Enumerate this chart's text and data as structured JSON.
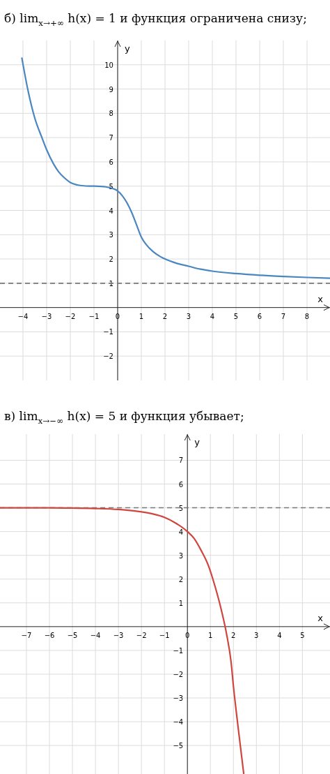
{
  "chart_data": [
    {
      "type": "line",
      "title": "б) lim$_{x→+∞}$ h(x) = 1 и функция ограничена снизу;",
      "xlabel": "x",
      "ylabel": "y",
      "xlim": [
        -4.97,
        8.97
      ],
      "ylim": [
        -3,
        11
      ],
      "xticks": [
        -4,
        -3,
        -2,
        -1,
        0,
        1,
        2,
        3,
        4,
        5,
        6,
        7,
        8
      ],
      "yticks": [
        -2,
        -1,
        1,
        2,
        3,
        4,
        5,
        6,
        7,
        8,
        9,
        10
      ],
      "grid": true,
      "ref_lines": [
        {
          "axis": "y",
          "value": 1,
          "color": "#777777",
          "line_style": "dashed"
        }
      ],
      "series": [
        {
          "color": "#4a86c0",
          "x": [
            -4.05,
            -3.8,
            -3.5,
            -3.2,
            -3,
            -2.7,
            -2.5,
            -2.2,
            -2,
            -1.7,
            -1.5,
            -1.2,
            -1,
            -0.7,
            -0.5,
            -0.3,
            -0.1,
            0,
            0.2,
            0.4,
            0.6,
            0.8,
            1,
            1.2,
            1.5,
            1.8,
            2,
            2.5,
            3,
            3.5,
            4,
            5,
            6,
            7,
            8,
            8.97
          ],
          "values": [
            10.3,
            9,
            7.8,
            7,
            6.5,
            5.9,
            5.6,
            5.3,
            5.15,
            5.05,
            5.02,
            5.0,
            5.0,
            4.99,
            4.97,
            4.93,
            4.86,
            4.8,
            4.6,
            4.3,
            3.9,
            3.4,
            2.9,
            2.6,
            2.3,
            2.1,
            2.0,
            1.82,
            1.7,
            1.58,
            1.5,
            1.4,
            1.33,
            1.28,
            1.24,
            1.21
          ]
        }
      ]
    },
    {
      "type": "line",
      "title": "в) lim$_{x→−∞}$ h(x) = 5 и функция убывает;",
      "xlabel": "x",
      "ylabel": "y",
      "xlim": [
        -8.15,
        6.2
      ],
      "ylim": [
        -6.2,
        8.1
      ],
      "xticks": [
        -7,
        -6,
        -5,
        -4,
        -3,
        -2,
        -1,
        0,
        1,
        2,
        3,
        4,
        5
      ],
      "yticks": [
        -5,
        -4,
        -3,
        -2,
        -1,
        1,
        2,
        3,
        4,
        5,
        6,
        7
      ],
      "grid": true,
      "ref_lines": [
        {
          "axis": "y",
          "value": 5,
          "color": "#777777",
          "line_style": "dashed"
        }
      ],
      "series": [
        {
          "color": "#d0463f",
          "x": [
            -8.15,
            -7,
            -6,
            -5,
            -4,
            -3,
            -2.5,
            -2,
            -1.5,
            -1,
            -0.5,
            0,
            0.3,
            0.6,
            0.9,
            1.2,
            1.5,
            1.7,
            1.9,
            2,
            2.2,
            2.45
          ],
          "values": [
            5.0,
            5.0,
            5.0,
            4.99,
            4.97,
            4.93,
            4.89,
            4.83,
            4.74,
            4.6,
            4.35,
            4.0,
            3.7,
            3.2,
            2.6,
            1.7,
            0.6,
            -0.3,
            -1.5,
            -2.5,
            -4.2,
            -6.2
          ]
        }
      ]
    }
  ]
}
